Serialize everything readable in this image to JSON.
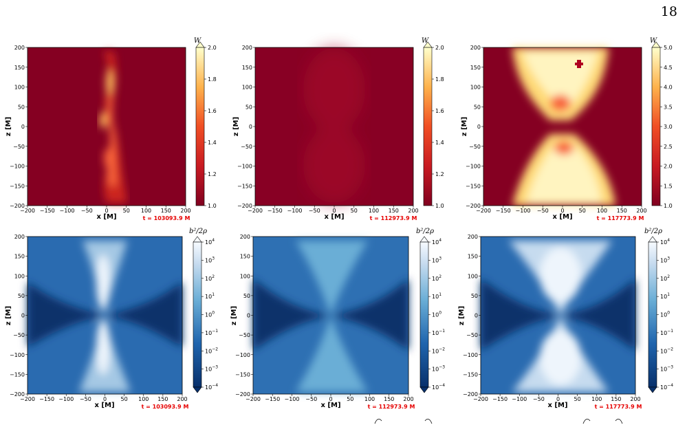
{
  "page_number": "18",
  "axis": {
    "xlabel": "x [M]",
    "ylabel": "z [M]",
    "ticks": [
      "−200",
      "−150",
      "−100",
      "−50",
      "0",
      "50",
      "100",
      "150",
      "200"
    ],
    "yticks": [
      "200",
      "150",
      "100",
      "50",
      "0",
      "−50",
      "−100",
      "−150",
      "−200"
    ]
  },
  "times": [
    "t = 103093.9 M",
    "t = 112973.9 M",
    "t = 117773.9 M"
  ],
  "colorbars": {
    "W_label": "W",
    "W_ticks_1": [
      "2.0",
      "1.8",
      "1.6",
      "1.4",
      "1.2",
      "1.0"
    ],
    "W_ticks_2": [
      "2.0",
      "1.8",
      "1.6",
      "1.4",
      "1.2",
      "1.0"
    ],
    "W_ticks_3": [
      "5.0",
      "4.5",
      "4.0",
      "3.5",
      "3.0",
      "2.5",
      "2.0",
      "1.5",
      "1.0"
    ],
    "sigma_label": "b²/2ρ",
    "sigma_exponents": [
      "4",
      "3",
      "2",
      "1",
      "0",
      "−1",
      "−2",
      "−3",
      "−4"
    ]
  },
  "colors": {
    "w_low": "#800020",
    "w_mid": "#e8321e",
    "w_high": "#fff8c8",
    "s_low": "#08306b",
    "s_mid": "#4a90c8",
    "s_high": "#f7fbff",
    "time_red": "#e60000"
  }
}
